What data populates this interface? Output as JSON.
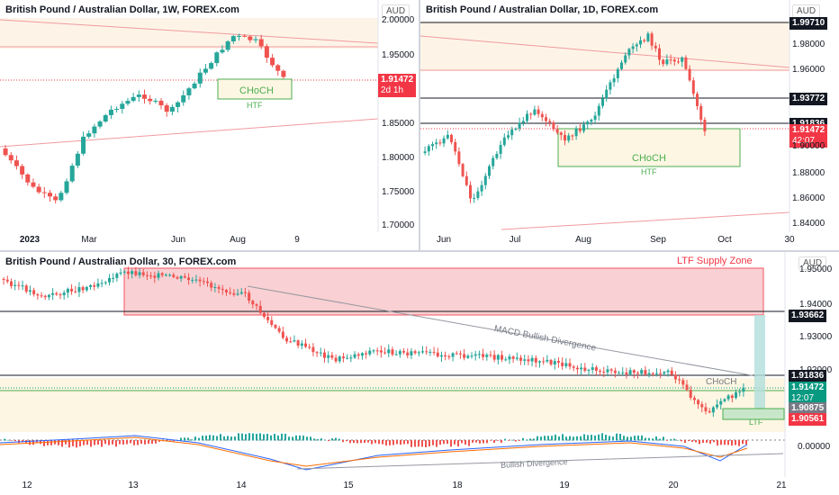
{
  "panels": {
    "weekly": {
      "title": "British Pound / Australian Dollar, 1W, FOREX.com",
      "unit": "AUD",
      "y_ticks": [
        "2.00000",
        "1.95000",
        "1.85000",
        "1.80000",
        "1.75000",
        "1.70000"
      ],
      "x_ticks": [
        "2023",
        "Mar",
        "Jun",
        "Aug",
        "9"
      ],
      "price_badge": "1.91472",
      "countdown": "2d 1h",
      "choch_label": "CHoCH",
      "htf_label": "HTF"
    },
    "daily": {
      "title": "British Pound / Australian Dollar, 1D, FOREX.com",
      "unit": "AUD",
      "y_ticks": [
        "1.98000",
        "1.96000",
        "1.90000",
        "1.88000",
        "1.86000",
        "1.84000"
      ],
      "x_ticks": [
        "Jun",
        "Jul",
        "Aug",
        "Sep",
        "Oct",
        "30"
      ],
      "level_top": "1.99710",
      "level_mid": "1.93772",
      "level_low": "1.91836",
      "price_badge": "1.91472",
      "countdown": "42:07",
      "choch_label": "CHoCH",
      "htf_label": "HTF"
    },
    "intraday": {
      "title": "British Pound / Australian Dollar, 30, FOREX.com",
      "unit": "AUD",
      "supply_zone_label": "LTF Supply Zone",
      "y_ticks": [
        "1.95000",
        "1.94000",
        "1.93000",
        "1.92000"
      ],
      "x_ticks": [
        "12",
        "13",
        "14",
        "15",
        "18",
        "19",
        "20",
        "21"
      ],
      "level_supply": "1.93662",
      "level_mid": "1.91836",
      "price_badge": "1.91472",
      "countdown": "12:07",
      "level_grey": "1.90875",
      "level_red": "1.90561",
      "macd_divergence_label": "MACD Bullish Divergence",
      "choch_label": "CHoCH",
      "ltf_label": "LTF",
      "macd_zero": "0.00000",
      "bullish_divergence_label": "Bullish Divergence"
    }
  },
  "colors": {
    "bull": "#26a69a",
    "bear": "#ef5350",
    "zone_fill": "#fdf6e3",
    "supply_fill": "#f8c8cc",
    "badge_red": "#f23645",
    "badge_green": "#089981",
    "badge_dark": "#131722"
  }
}
